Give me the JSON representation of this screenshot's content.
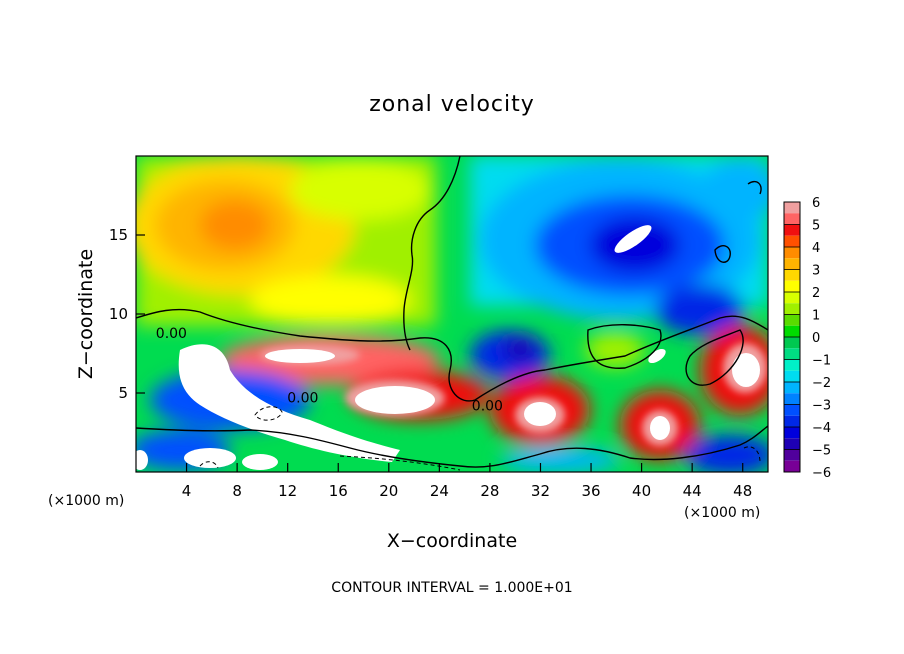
{
  "chart_data": {
    "type": "heatmap",
    "title": "zonal velocity",
    "xlabel": "X−coordinate",
    "ylabel": "Z−coordinate",
    "x_unit_left": "(×1000 m)",
    "x_unit_right": "(×1000 m)",
    "xlim": [
      0,
      50
    ],
    "ylim": [
      0,
      20
    ],
    "xticks": [
      4,
      8,
      12,
      16,
      20,
      24,
      28,
      32,
      36,
      40,
      44,
      48
    ],
    "yticks": [
      5,
      10,
      15
    ],
    "grid": false,
    "footnote": "CONTOUR INTERVAL = 1.000E+01",
    "contour_labels": [
      {
        "text": "0.00",
        "x": 2.8,
        "y": 8.8
      },
      {
        "text": "0.00",
        "x": 13.2,
        "y": 4.7
      },
      {
        "text": "0.00",
        "x": 27.8,
        "y": 4.2
      }
    ],
    "colorbar": {
      "ticks": [
        6,
        5,
        4,
        3,
        2,
        1,
        0,
        -1,
        -2,
        -3,
        -4,
        -5,
        -6
      ],
      "levels": [
        {
          "lo": 5.5,
          "hi": 6,
          "color": "#f0a0a0"
        },
        {
          "lo": 5,
          "hi": 5.5,
          "color": "#ff6464"
        },
        {
          "lo": 4.5,
          "hi": 5,
          "color": "#f01010"
        },
        {
          "lo": 4,
          "hi": 4.5,
          "color": "#ff5000"
        },
        {
          "lo": 3.5,
          "hi": 4,
          "color": "#ff8c00"
        },
        {
          "lo": 3,
          "hi": 3.5,
          "color": "#ffb400"
        },
        {
          "lo": 2.5,
          "hi": 3,
          "color": "#ffd800"
        },
        {
          "lo": 2,
          "hi": 2.5,
          "color": "#ffff00"
        },
        {
          "lo": 1.5,
          "hi": 2,
          "color": "#d8ff00"
        },
        {
          "lo": 1,
          "hi": 1.5,
          "color": "#a0f000"
        },
        {
          "lo": 0.5,
          "hi": 1,
          "color": "#5adc00"
        },
        {
          "lo": 0,
          "hi": 0.5,
          "color": "#00dc00"
        },
        {
          "lo": -0.5,
          "hi": 0,
          "color": "#00c850"
        },
        {
          "lo": -1,
          "hi": -0.5,
          "color": "#00dc82"
        },
        {
          "lo": -1.5,
          "hi": -1,
          "color": "#00f0c8"
        },
        {
          "lo": -2,
          "hi": -1.5,
          "color": "#00dcf0"
        },
        {
          "lo": -2.5,
          "hi": -2,
          "color": "#00b4ff"
        },
        {
          "lo": -3,
          "hi": -2.5,
          "color": "#0082ff"
        },
        {
          "lo": -3.5,
          "hi": -3,
          "color": "#0050ff"
        },
        {
          "lo": -4,
          "hi": -3.5,
          "color": "#0028e6"
        },
        {
          "lo": -4.5,
          "hi": -4,
          "color": "#0000dc"
        },
        {
          "lo": -5,
          "hi": -4.5,
          "color": "#1e00b4"
        },
        {
          "lo": -5.5,
          "hi": -5,
          "color": "#50009c"
        },
        {
          "lo": -6,
          "hi": -5.5,
          "color": "#780096"
        }
      ]
    }
  }
}
